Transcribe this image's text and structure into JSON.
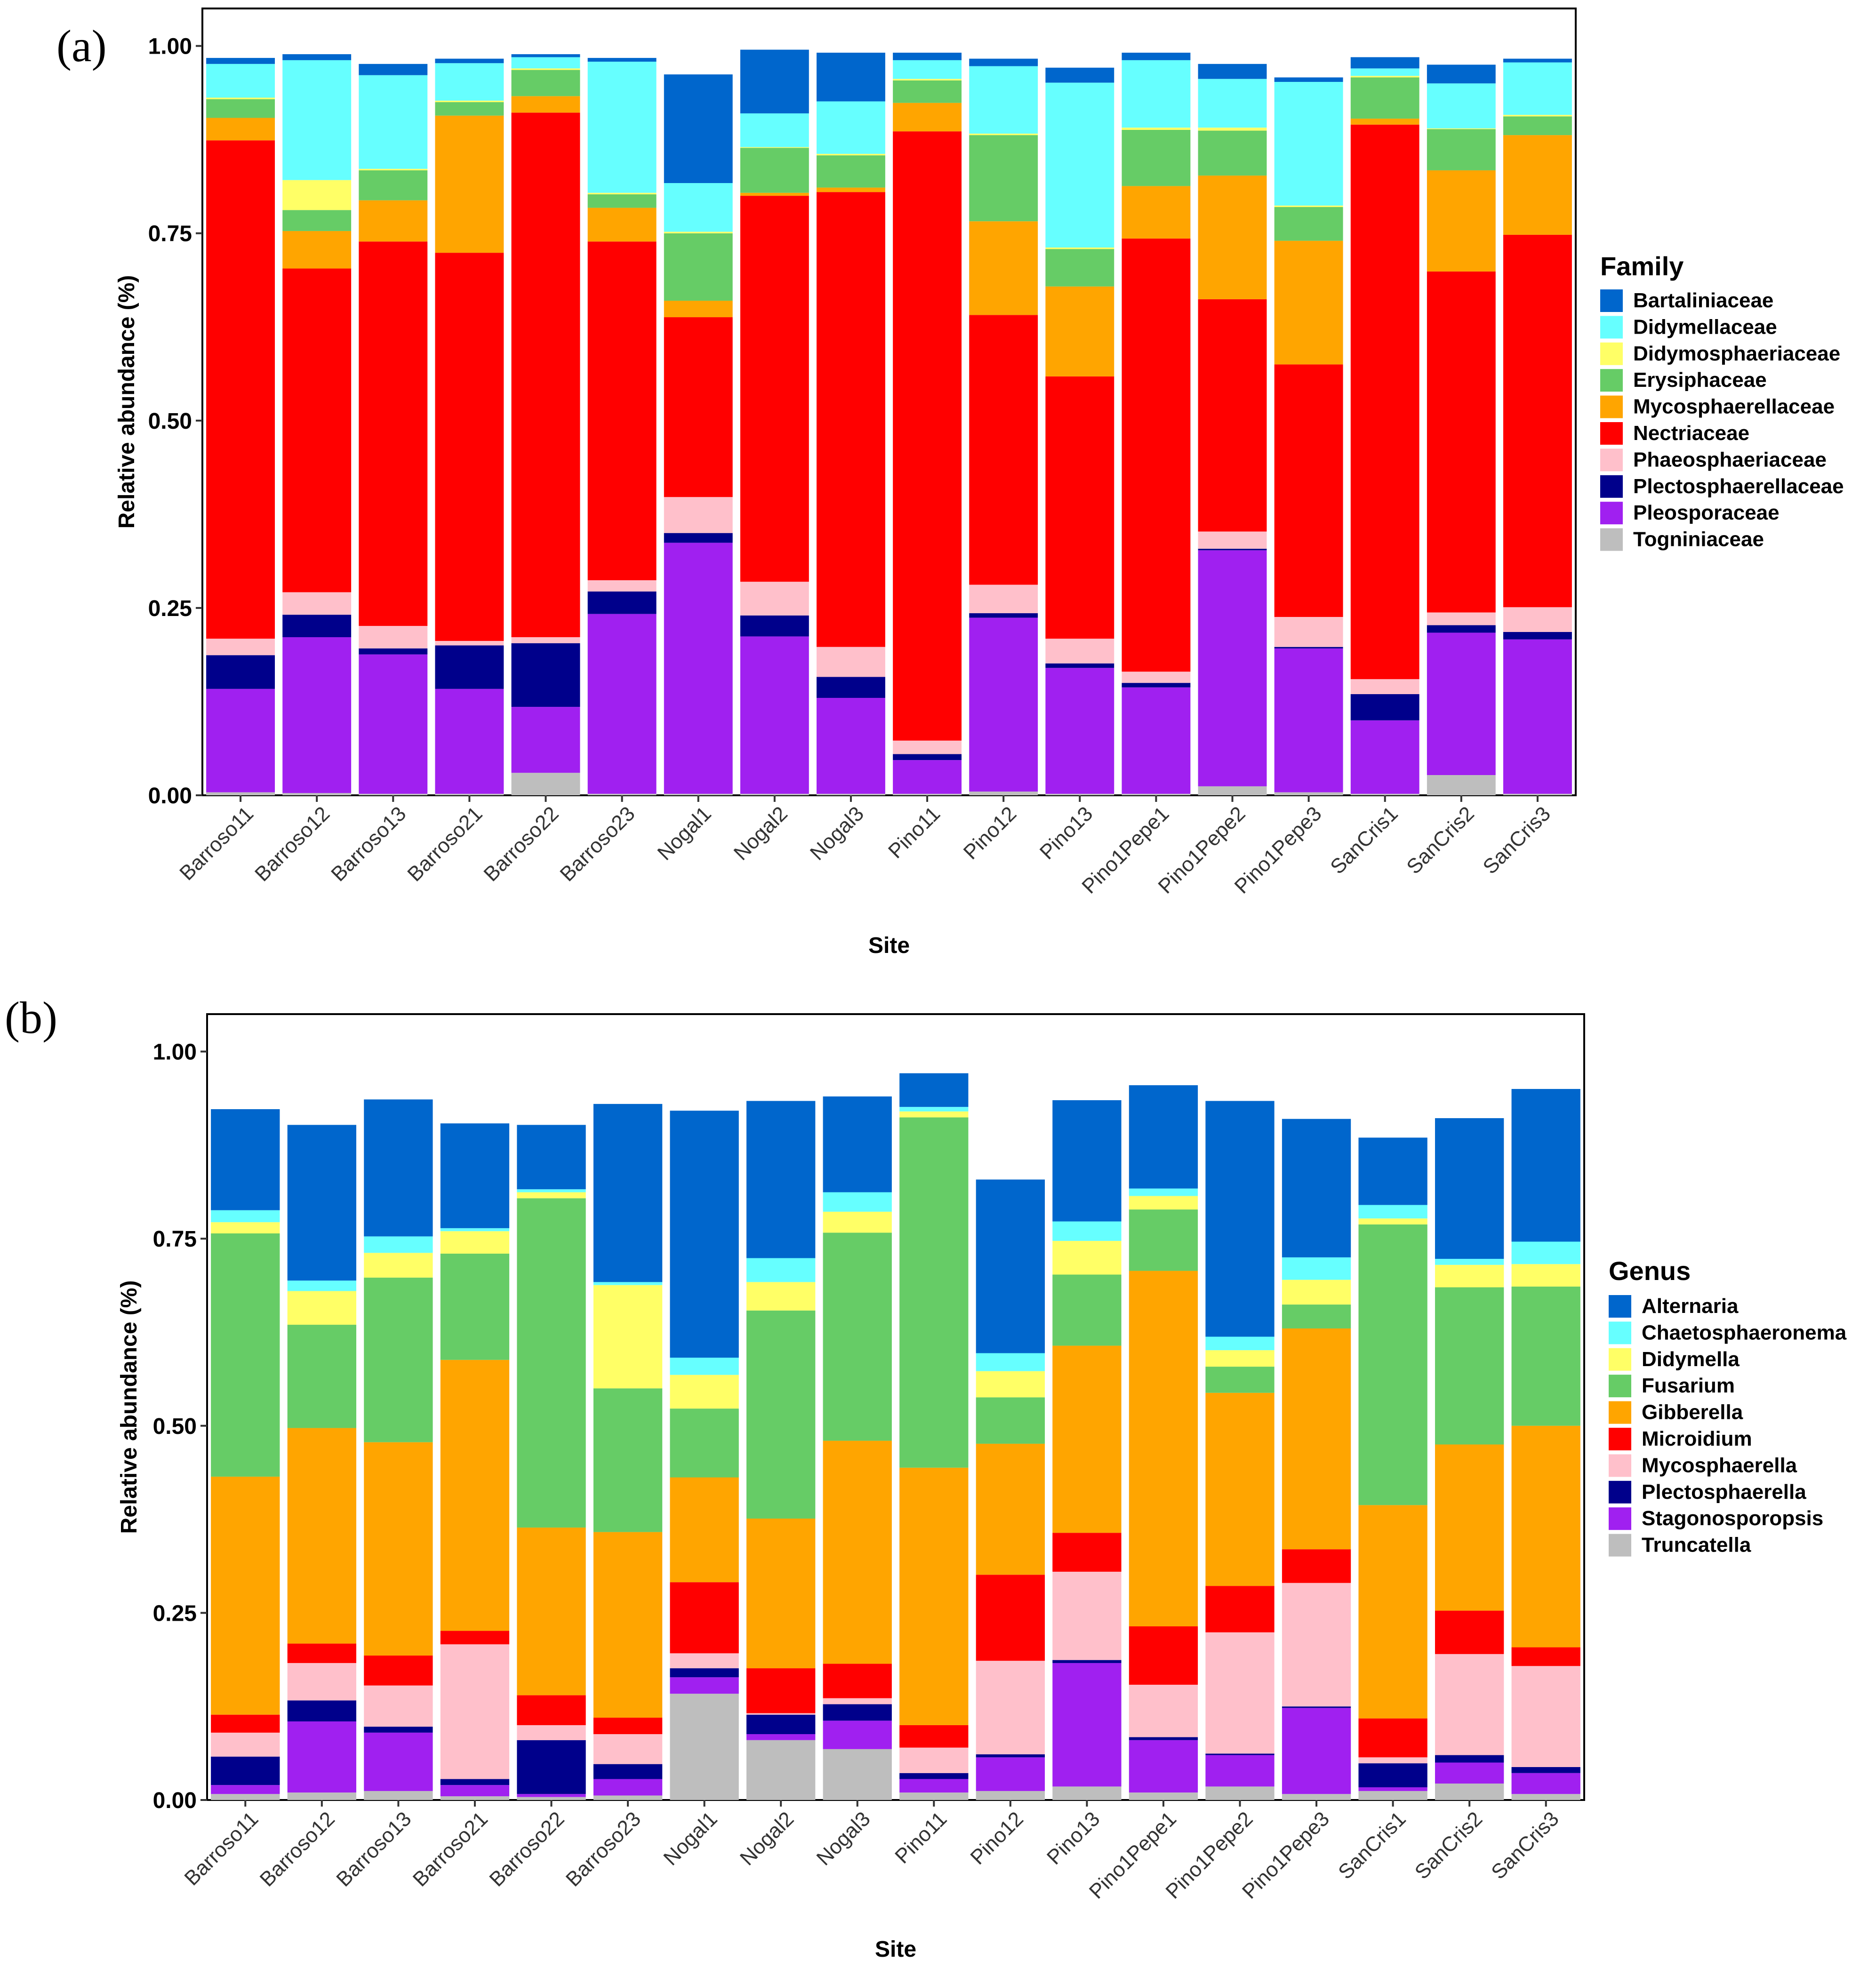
{
  "chart_data": [
    {
      "type": "bar",
      "stacked": true,
      "panel_label": "(a)",
      "xlabel": "Site",
      "ylabel": "Relative abundance (%)",
      "ylim": [
        0,
        1.05
      ],
      "yticks": [
        "0.00",
        "0.25",
        "0.50",
        "0.75",
        "1.00"
      ],
      "legend_title": "Family",
      "legend_position": "right",
      "categories": [
        "Barroso11",
        "Barroso12",
        "Barroso13",
        "Barroso21",
        "Barroso22",
        "Barroso23",
        "Nogal1",
        "Nogal2",
        "Nogal3",
        "Pino11",
        "Pino12",
        "Pino13",
        "Pino1Pepe1",
        "Pino1Pepe2",
        "Pino1Pepe3",
        "SanCris1",
        "SanCris2",
        "SanCris3"
      ],
      "series": [
        {
          "name": "Togniniaceae",
          "color": "#BEBEBE",
          "values": [
            0.004,
            0.003,
            0.002,
            0.002,
            0.03,
            0.002,
            0.002,
            0.002,
            0.002,
            0.002,
            0.005,
            0.002,
            0.002,
            0.012,
            0.004,
            0.002,
            0.027,
            0.002
          ]
        },
        {
          "name": "Pleosporaceae",
          "color": "#A020F0",
          "values": [
            0.138,
            0.208,
            0.186,
            0.14,
            0.088,
            0.24,
            0.335,
            0.21,
            0.128,
            0.045,
            0.232,
            0.168,
            0.142,
            0.315,
            0.192,
            0.098,
            0.19,
            0.206
          ]
        },
        {
          "name": "Plectosphaerellaceae",
          "color": "#00008B",
          "values": [
            0.045,
            0.03,
            0.008,
            0.058,
            0.085,
            0.03,
            0.013,
            0.028,
            0.028,
            0.008,
            0.006,
            0.006,
            0.006,
            0.002,
            0.002,
            0.035,
            0.01,
            0.01
          ]
        },
        {
          "name": "Phaeosphaeriaceae",
          "color": "#FFC0CB",
          "values": [
            0.022,
            0.03,
            0.03,
            0.006,
            0.008,
            0.015,
            0.048,
            0.045,
            0.04,
            0.018,
            0.038,
            0.033,
            0.015,
            0.023,
            0.04,
            0.02,
            0.017,
            0.033
          ]
        },
        {
          "name": "Nectriaceae",
          "color": "#FF0000",
          "values": [
            0.665,
            0.432,
            0.513,
            0.518,
            0.7,
            0.452,
            0.24,
            0.515,
            0.607,
            0.813,
            0.36,
            0.35,
            0.578,
            0.31,
            0.337,
            0.74,
            0.455,
            0.497
          ]
        },
        {
          "name": "Mycosphaerellaceae",
          "color": "#FFA500",
          "values": [
            0.03,
            0.05,
            0.055,
            0.183,
            0.022,
            0.045,
            0.022,
            0.004,
            0.006,
            0.038,
            0.125,
            0.12,
            0.07,
            0.165,
            0.165,
            0.008,
            0.135,
            0.133
          ]
        },
        {
          "name": "Erysiphaceae",
          "color": "#66CC66",
          "values": [
            0.025,
            0.028,
            0.04,
            0.018,
            0.035,
            0.018,
            0.09,
            0.06,
            0.043,
            0.03,
            0.115,
            0.05,
            0.075,
            0.06,
            0.045,
            0.055,
            0.055,
            0.025
          ]
        },
        {
          "name": "Didymosphaeriaceae",
          "color": "#FFFF66",
          "values": [
            0.002,
            0.04,
            0.002,
            0.002,
            0.002,
            0.002,
            0.002,
            0.001,
            0.002,
            0.002,
            0.002,
            0.002,
            0.003,
            0.004,
            0.002,
            0.002,
            0.001,
            0.002
          ]
        },
        {
          "name": "Didymellaceae",
          "color": "#66FFFF",
          "values": [
            0.045,
            0.16,
            0.125,
            0.05,
            0.015,
            0.175,
            0.065,
            0.045,
            0.07,
            0.025,
            0.09,
            0.22,
            0.09,
            0.065,
            0.165,
            0.01,
            0.06,
            0.07
          ]
        },
        {
          "name": "Bartaliniaceae",
          "color": "#0066CC",
          "values": [
            0.008,
            0.008,
            0.015,
            0.006,
            0.004,
            0.005,
            0.145,
            0.085,
            0.065,
            0.01,
            0.01,
            0.02,
            0.01,
            0.02,
            0.006,
            0.015,
            0.025,
            0.005
          ]
        }
      ]
    },
    {
      "type": "bar",
      "stacked": true,
      "panel_label": "(b)",
      "xlabel": "Site",
      "ylabel": "Relative abundance (%)",
      "ylim": [
        0,
        1.05
      ],
      "yticks": [
        "0.00",
        "0.25",
        "0.50",
        "0.75",
        "1.00"
      ],
      "legend_title": "Genus",
      "legend_position": "right",
      "categories": [
        "Barroso11",
        "Barroso12",
        "Barroso13",
        "Barroso21",
        "Barroso22",
        "Barroso23",
        "Nogal1",
        "Nogal2",
        "Nogal3",
        "Pino11",
        "Pino12",
        "Pino13",
        "Pino1Pepe1",
        "Pino1Pepe2",
        "Pino1Pepe3",
        "SanCris1",
        "SanCris2",
        "SanCris3"
      ],
      "series": [
        {
          "name": "Truncatella",
          "color": "#BEBEBE",
          "values": [
            0.008,
            0.01,
            0.012,
            0.005,
            0.004,
            0.006,
            0.142,
            0.08,
            0.068,
            0.01,
            0.012,
            0.018,
            0.01,
            0.018,
            0.008,
            0.012,
            0.022,
            0.008
          ]
        },
        {
          "name": "Stagonosporopsis",
          "color": "#A020F0",
          "values": [
            0.012,
            0.095,
            0.078,
            0.015,
            0.004,
            0.022,
            0.022,
            0.008,
            0.038,
            0.018,
            0.045,
            0.165,
            0.07,
            0.042,
            0.115,
            0.005,
            0.028,
            0.028
          ]
        },
        {
          "name": "Plectosphaerella",
          "color": "#00008B",
          "values": [
            0.038,
            0.028,
            0.008,
            0.008,
            0.072,
            0.02,
            0.012,
            0.026,
            0.022,
            0.008,
            0.004,
            0.004,
            0.004,
            0.002,
            0.002,
            0.032,
            0.01,
            0.008
          ]
        },
        {
          "name": "Mycosphaerella",
          "color": "#FFC0CB",
          "values": [
            0.032,
            0.05,
            0.055,
            0.18,
            0.02,
            0.04,
            0.02,
            0.002,
            0.008,
            0.034,
            0.125,
            0.118,
            0.07,
            0.162,
            0.165,
            0.008,
            0.135,
            0.135
          ]
        },
        {
          "name": "Microidium",
          "color": "#FF0000",
          "values": [
            0.024,
            0.026,
            0.04,
            0.018,
            0.04,
            0.022,
            0.095,
            0.06,
            0.046,
            0.03,
            0.115,
            0.052,
            0.078,
            0.062,
            0.045,
            0.052,
            0.058,
            0.025
          ]
        },
        {
          "name": "Gibberella",
          "color": "#FFA500",
          "values": [
            0.318,
            0.288,
            0.285,
            0.362,
            0.224,
            0.248,
            0.14,
            0.2,
            0.298,
            0.344,
            0.175,
            0.25,
            0.475,
            0.258,
            0.295,
            0.285,
            0.222,
            0.296
          ]
        },
        {
          "name": "Fusarium",
          "color": "#66CC66",
          "values": [
            0.325,
            0.138,
            0.22,
            0.142,
            0.44,
            0.192,
            0.092,
            0.278,
            0.278,
            0.468,
            0.062,
            0.095,
            0.082,
            0.035,
            0.032,
            0.375,
            0.21,
            0.186
          ]
        },
        {
          "name": "Didymella",
          "color": "#FFFF66",
          "values": [
            0.015,
            0.045,
            0.033,
            0.03,
            0.008,
            0.138,
            0.045,
            0.038,
            0.028,
            0.008,
            0.035,
            0.045,
            0.018,
            0.022,
            0.033,
            0.008,
            0.03,
            0.03
          ]
        },
        {
          "name": "Chaetosphaeronema",
          "color": "#66FFFF",
          "values": [
            0.016,
            0.014,
            0.022,
            0.004,
            0.004,
            0.004,
            0.023,
            0.032,
            0.026,
            0.006,
            0.024,
            0.026,
            0.01,
            0.018,
            0.03,
            0.018,
            0.008,
            0.03
          ]
        },
        {
          "name": "Alternaria",
          "color": "#0066CC",
          "values": [
            0.135,
            0.208,
            0.183,
            0.14,
            0.086,
            0.238,
            0.33,
            0.21,
            0.128,
            0.045,
            0.232,
            0.162,
            0.138,
            0.315,
            0.185,
            0.09,
            0.188,
            0.204
          ]
        }
      ]
    }
  ]
}
